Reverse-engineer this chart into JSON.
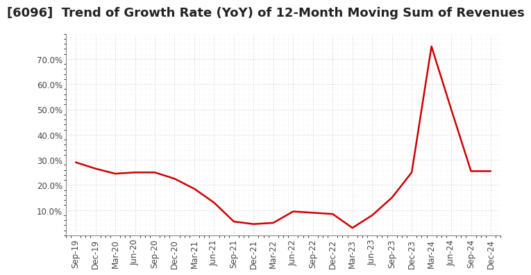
{
  "title": "[6096]  Trend of Growth Rate (YoY) of 12-Month Moving Sum of Revenues",
  "x_labels": [
    "Sep-19",
    "Dec-19",
    "Mar-20",
    "Jun-20",
    "Sep-20",
    "Dec-20",
    "Mar-21",
    "Jun-21",
    "Sep-21",
    "Dec-21",
    "Mar-22",
    "Jun-22",
    "Sep-22",
    "Dec-22",
    "Mar-23",
    "Jun-23",
    "Sep-23",
    "Dec-23",
    "Mar-24",
    "Jun-24",
    "Sep-24",
    "Dec-24"
  ],
  "y_values": [
    29.0,
    26.5,
    24.5,
    25.0,
    25.0,
    22.5,
    18.5,
    13.0,
    5.5,
    4.5,
    5.0,
    9.5,
    9.0,
    8.5,
    3.0,
    8.0,
    15.0,
    25.0,
    75.0,
    50.0,
    25.5,
    25.5
  ],
  "line_color": "#cc0000",
  "background_color": "#ffffff",
  "plot_bg_color": "#ffffff",
  "ylim": [
    0,
    80
  ],
  "yticks": [
    10.0,
    20.0,
    30.0,
    40.0,
    50.0,
    60.0,
    70.0
  ],
  "grid_color": "#bbbbbb",
  "title_fontsize": 13,
  "axis_label_fontsize": 8.5
}
